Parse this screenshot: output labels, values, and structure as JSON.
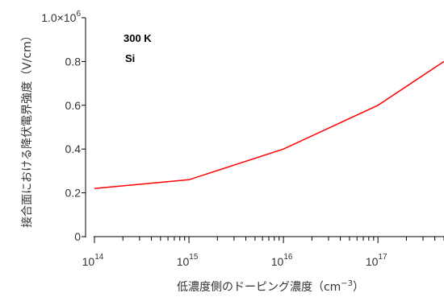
{
  "chart_data": {
    "type": "line",
    "xscale": "log",
    "xlim": [
      100000000000000.0,
      5e+17
    ],
    "ylim": [
      0,
      1000000.0
    ],
    "x": [
      100000000000000.0,
      1000000000000000.0,
      1e+16,
      1e+17,
      5e+17
    ],
    "series": [
      {
        "values": [
          220000,
          260000,
          400000,
          600000,
          800000
        ],
        "color": "#ff0000"
      }
    ],
    "xticks": [
      {
        "base": "10",
        "exp": "14"
      },
      {
        "base": "10",
        "exp": "15"
      },
      {
        "base": "10",
        "exp": "16"
      },
      {
        "base": "10",
        "exp": "17"
      }
    ],
    "yticks": [
      "0",
      "0.2",
      "0.4",
      "0.6",
      "0.8"
    ],
    "ytop_label": {
      "mantissa": "1.0×10",
      "exp": "6"
    },
    "xlabel": {
      "main": "低濃度側のドーピング濃度（cm",
      "exp": "−3",
      "close": "）"
    },
    "ylabel": "接合面における降伏電界強度（V/cm）",
    "annotations": [
      "300 K",
      "Si"
    ],
    "grid": false,
    "legend": "none"
  }
}
